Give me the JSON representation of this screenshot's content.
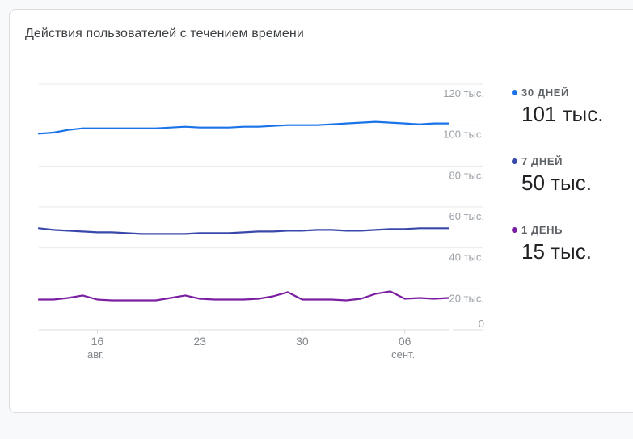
{
  "card": {
    "title": "Действия пользователей с течением времени"
  },
  "legend": [
    {
      "label": "30 ДНЕЙ",
      "value": "101 тыс.",
      "color": "#1a73e8"
    },
    {
      "label": "7 ДНЕЙ",
      "value": "50 тыс.",
      "color": "#3949ab"
    },
    {
      "label": "1 ДЕНЬ",
      "value": "15 тыс.",
      "color": "#7b1fa2"
    }
  ],
  "chart_data": {
    "type": "line",
    "title": "Действия пользователей с течением времени",
    "x": [
      "2023-08-12",
      "2023-08-13",
      "2023-08-14",
      "2023-08-15",
      "2023-08-16",
      "2023-08-17",
      "2023-08-18",
      "2023-08-19",
      "2023-08-20",
      "2023-08-21",
      "2023-08-22",
      "2023-08-23",
      "2023-08-24",
      "2023-08-25",
      "2023-08-26",
      "2023-08-27",
      "2023-08-28",
      "2023-08-29",
      "2023-08-30",
      "2023-08-31",
      "2023-09-01",
      "2023-09-02",
      "2023-09-03",
      "2023-09-04",
      "2023-09-05",
      "2023-09-06",
      "2023-09-07",
      "2023-09-08",
      "2023-09-09"
    ],
    "x_ticks": [
      {
        "day": "16",
        "month": "авг.",
        "date": "2023-08-16"
      },
      {
        "day": "23",
        "month": "",
        "date": "2023-08-23"
      },
      {
        "day": "30",
        "month": "",
        "date": "2023-08-30"
      },
      {
        "day": "06",
        "month": "сент.",
        "date": "2023-09-06"
      }
    ],
    "y_ticks": [
      "0",
      "20 тыс.",
      "40 тыс.",
      "60 тыс.",
      "80 тыс.",
      "100 тыс.",
      "120 тыс."
    ],
    "ylim": [
      0,
      120000
    ],
    "grid": true,
    "legend_position": "right",
    "series": [
      {
        "name": "30 ДНЕЙ",
        "color": "#1a73e8",
        "values": [
          95800,
          96300,
          97600,
          98400,
          98400,
          98400,
          98400,
          98400,
          98400,
          98800,
          99200,
          98800,
          98800,
          98800,
          99200,
          99200,
          99600,
          100000,
          100000,
          100000,
          100400,
          100800,
          101200,
          101600,
          101200,
          100800,
          100400,
          100800,
          100800
        ]
      },
      {
        "name": "7 ДНЕЙ",
        "color": "#3949ab",
        "values": [
          49600,
          48800,
          48400,
          48000,
          47600,
          47600,
          47200,
          46800,
          46800,
          46800,
          46800,
          47200,
          47200,
          47200,
          47600,
          48000,
          48000,
          48400,
          48400,
          48800,
          48800,
          48400,
          48400,
          48800,
          49200,
          49200,
          49600,
          49600,
          49600
        ]
      },
      {
        "name": "1 ДЕНЬ",
        "color": "#7b1fa2",
        "values": [
          14800,
          14800,
          15600,
          16800,
          14800,
          14400,
          14400,
          14400,
          14400,
          15600,
          16800,
          15200,
          14800,
          14800,
          14800,
          15200,
          16400,
          18400,
          14800,
          14800,
          14800,
          14400,
          15200,
          17600,
          18800,
          15200,
          15600,
          15200,
          15600
        ]
      }
    ]
  }
}
